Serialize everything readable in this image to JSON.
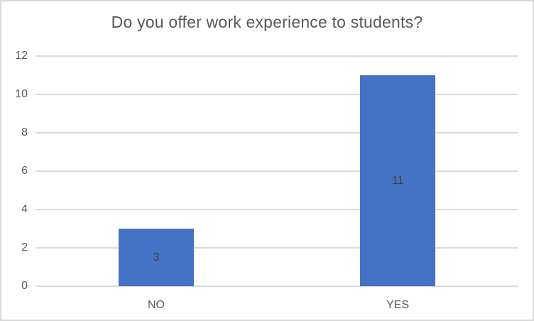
{
  "chart_data": {
    "type": "bar",
    "title": "Do you offer work experience to students?",
    "categories": [
      "NO",
      "YES"
    ],
    "values": [
      3,
      11
    ],
    "data_labels": [
      "3",
      "11"
    ],
    "xlabel": "",
    "ylabel": "",
    "ylim": [
      0,
      12
    ],
    "yticks": [
      0,
      2,
      4,
      6,
      8,
      10,
      12
    ],
    "grid": "horizontal",
    "legend": "none",
    "colors": {
      "bar_fill": "#4472C4",
      "data_label": "#404040",
      "axis_text": "#595959",
      "title_text": "#595959",
      "gridline": "#D9D9D9",
      "axis_line": "#D9D9D9",
      "chart_border": "#D9D9D9",
      "background": "#FFFFFF"
    }
  }
}
